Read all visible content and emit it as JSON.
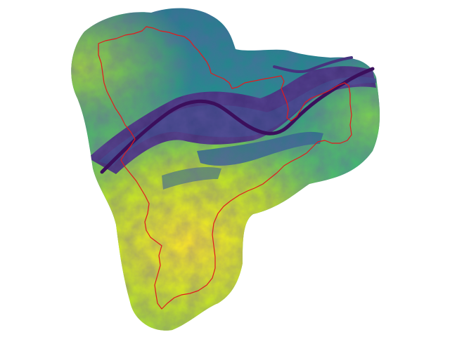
{
  "map": {
    "colormap": "viridis",
    "background": "#ffffff",
    "colors": {
      "low": "#440154",
      "low_mid": "#3b528b",
      "mid": "#21918c",
      "high_mid": "#5ec962",
      "high": "#fde725"
    },
    "river_color": "#3b0f5c",
    "boundary_color": "#e31a1c",
    "layers": [
      "elevation-raster",
      "river-channel",
      "watershed-boundary"
    ]
  }
}
